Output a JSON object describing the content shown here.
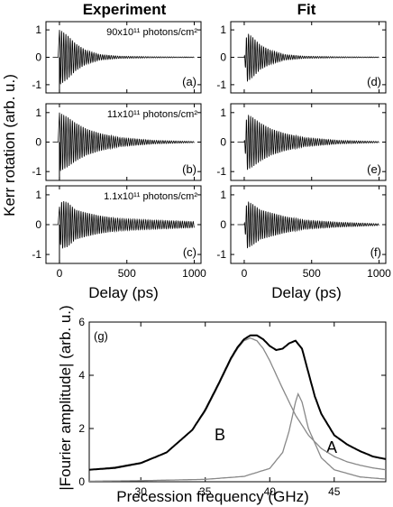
{
  "columns": {
    "left_title": "Experiment",
    "right_title": "Fit"
  },
  "shared_axes": {
    "ylabel": "Kerr rotation (arb. u.)",
    "delay_xlabel": "Delay  (ps)",
    "delay_xticks": [
      "0",
      "500",
      "1000"
    ],
    "kerr_yticks": [
      "1",
      "0",
      "-1"
    ]
  },
  "chart_data": [
    {
      "type": "line",
      "panel": "(a)",
      "column": "Experiment",
      "annotation": "90x10¹¹ photons/cm²",
      "xlabel": "Delay  (ps)",
      "ylabel": "Kerr rotation (arb. u.)",
      "xlim": [
        -100,
        1050
      ],
      "ylim": [
        -1.3,
        1.3
      ],
      "x_ticks": [
        0,
        500,
        1000
      ],
      "y_ticks": [
        -1,
        0,
        1
      ],
      "series": [
        {
          "x": [
            0,
            20,
            60,
            120,
            200,
            300,
            450,
            700,
            1000
          ],
          "amplitude": [
            1.0,
            0.95,
            0.8,
            0.5,
            0.25,
            0.1,
            0.04,
            0.02,
            0.01
          ]
        }
      ]
    },
    {
      "type": "line",
      "panel": "(b)",
      "column": "Experiment",
      "annotation": "11x10¹¹ photons/cm²",
      "xlabel": "Delay  (ps)",
      "ylabel": "Kerr rotation (arb. u.)",
      "xlim": [
        -100,
        1050
      ],
      "ylim": [
        -1.3,
        1.3
      ],
      "x_ticks": [
        0,
        500,
        1000
      ],
      "y_ticks": [
        -1,
        0,
        1
      ],
      "series": [
        {
          "x": [
            0,
            20,
            60,
            120,
            200,
            300,
            450,
            700,
            1000
          ],
          "amplitude": [
            1.0,
            0.95,
            0.85,
            0.65,
            0.45,
            0.3,
            0.15,
            0.06,
            0.02
          ]
        }
      ]
    },
    {
      "type": "line",
      "panel": "(c)",
      "column": "Experiment",
      "annotation": "1.1x10¹¹ photons/cm²",
      "xlabel": "Delay  (ps)",
      "ylabel": "Kerr rotation (arb. u.)",
      "xlim": [
        -100,
        1050
      ],
      "ylim": [
        -1.3,
        1.3
      ],
      "x_ticks": [
        0,
        500,
        1000
      ],
      "y_ticks": [
        -1,
        0,
        1
      ],
      "series": [
        {
          "x": [
            0,
            20,
            60,
            120,
            200,
            300,
            450,
            700,
            1000
          ],
          "amplitude": [
            0.6,
            0.8,
            0.75,
            0.5,
            0.4,
            0.3,
            0.2,
            0.15,
            0.1
          ]
        }
      ]
    },
    {
      "type": "line",
      "panel": "(d)",
      "column": "Fit",
      "xlabel": "Delay  (ps)",
      "ylabel": "Kerr rotation (arb. u.)",
      "xlim": [
        -100,
        1050
      ],
      "ylim": [
        -1.3,
        1.3
      ],
      "x_ticks": [
        0,
        500,
        1000
      ],
      "y_ticks": [
        -1,
        0,
        1
      ],
      "series": [
        {
          "x": [
            0,
            20,
            60,
            120,
            200,
            300,
            450,
            700,
            1000
          ],
          "amplitude": [
            0.0,
            0.9,
            0.75,
            0.45,
            0.25,
            0.1,
            0.04,
            0.02,
            0.01
          ]
        }
      ]
    },
    {
      "type": "line",
      "panel": "(e)",
      "column": "Fit",
      "xlabel": "Delay  (ps)",
      "ylabel": "Kerr rotation (arb. u.)",
      "xlim": [
        -100,
        1050
      ],
      "ylim": [
        -1.3,
        1.3
      ],
      "x_ticks": [
        0,
        500,
        1000
      ],
      "y_ticks": [
        -1,
        0,
        1
      ],
      "series": [
        {
          "x": [
            0,
            20,
            60,
            120,
            200,
            300,
            450,
            700,
            1000
          ],
          "amplitude": [
            0.0,
            0.95,
            0.85,
            0.65,
            0.45,
            0.3,
            0.15,
            0.06,
            0.02
          ]
        }
      ]
    },
    {
      "type": "line",
      "panel": "(f)",
      "column": "Fit",
      "xlabel": "Delay  (ps)",
      "ylabel": "Kerr rotation (arb. u.)",
      "xlim": [
        -100,
        1050
      ],
      "ylim": [
        -1.3,
        1.3
      ],
      "x_ticks": [
        0,
        500,
        1000
      ],
      "y_ticks": [
        -1,
        0,
        1
      ],
      "series": [
        {
          "x": [
            0,
            20,
            60,
            120,
            200,
            300,
            450,
            700,
            1000
          ],
          "amplitude": [
            0.0,
            0.8,
            0.7,
            0.5,
            0.4,
            0.28,
            0.15,
            0.08,
            0.03
          ]
        }
      ]
    },
    {
      "type": "line",
      "panel": "(g)",
      "xlabel": "Precession frequency (GHz)",
      "ylabel": "|Fourier amplitude| (arb. u.)",
      "xlim": [
        26,
        49
      ],
      "ylim": [
        0,
        6
      ],
      "x_ticks": [
        30,
        35,
        40,
        45
      ],
      "y_ticks": [
        0,
        2,
        4,
        6
      ],
      "curve_labels": {
        "B": "B",
        "A": "A"
      },
      "series": [
        {
          "label": "B",
          "color": "#888888",
          "x": [
            26,
            28,
            30,
            32,
            34,
            35,
            36,
            37,
            37.5,
            38,
            38.5,
            39,
            39.5,
            40,
            41,
            42,
            43,
            44,
            45,
            46,
            47,
            48,
            49
          ],
          "y": [
            0.45,
            0.55,
            0.72,
            1.1,
            1.95,
            2.65,
            3.6,
            4.6,
            5.0,
            5.3,
            5.4,
            5.3,
            5.0,
            4.55,
            3.5,
            2.5,
            1.75,
            1.25,
            0.95,
            0.75,
            0.62,
            0.52,
            0.45
          ]
        },
        {
          "label": "A",
          "color": "#888888",
          "x": [
            26,
            30,
            35,
            38,
            40,
            41,
            41.5,
            42,
            42.2,
            42.5,
            43,
            44,
            45,
            47,
            49
          ],
          "y": [
            0.02,
            0.04,
            0.09,
            0.2,
            0.5,
            1.1,
            1.9,
            3.0,
            3.3,
            3.0,
            2.0,
            0.9,
            0.45,
            0.18,
            0.1
          ]
        },
        {
          "label": "sum",
          "color": "#000000",
          "x": [
            26,
            28,
            30,
            32,
            34,
            35,
            36,
            37,
            37.5,
            38,
            38.5,
            39,
            39.5,
            40,
            40.5,
            41,
            41.5,
            42,
            42.5,
            43,
            43.5,
            44,
            45,
            46,
            47,
            48,
            49
          ],
          "y": [
            0.45,
            0.52,
            0.7,
            1.1,
            1.95,
            2.7,
            3.65,
            4.65,
            5.05,
            5.35,
            5.5,
            5.5,
            5.35,
            5.1,
            4.95,
            5.0,
            5.2,
            5.3,
            5.0,
            4.1,
            3.2,
            2.55,
            1.75,
            1.4,
            1.15,
            0.95,
            0.85
          ]
        }
      ]
    }
  ]
}
